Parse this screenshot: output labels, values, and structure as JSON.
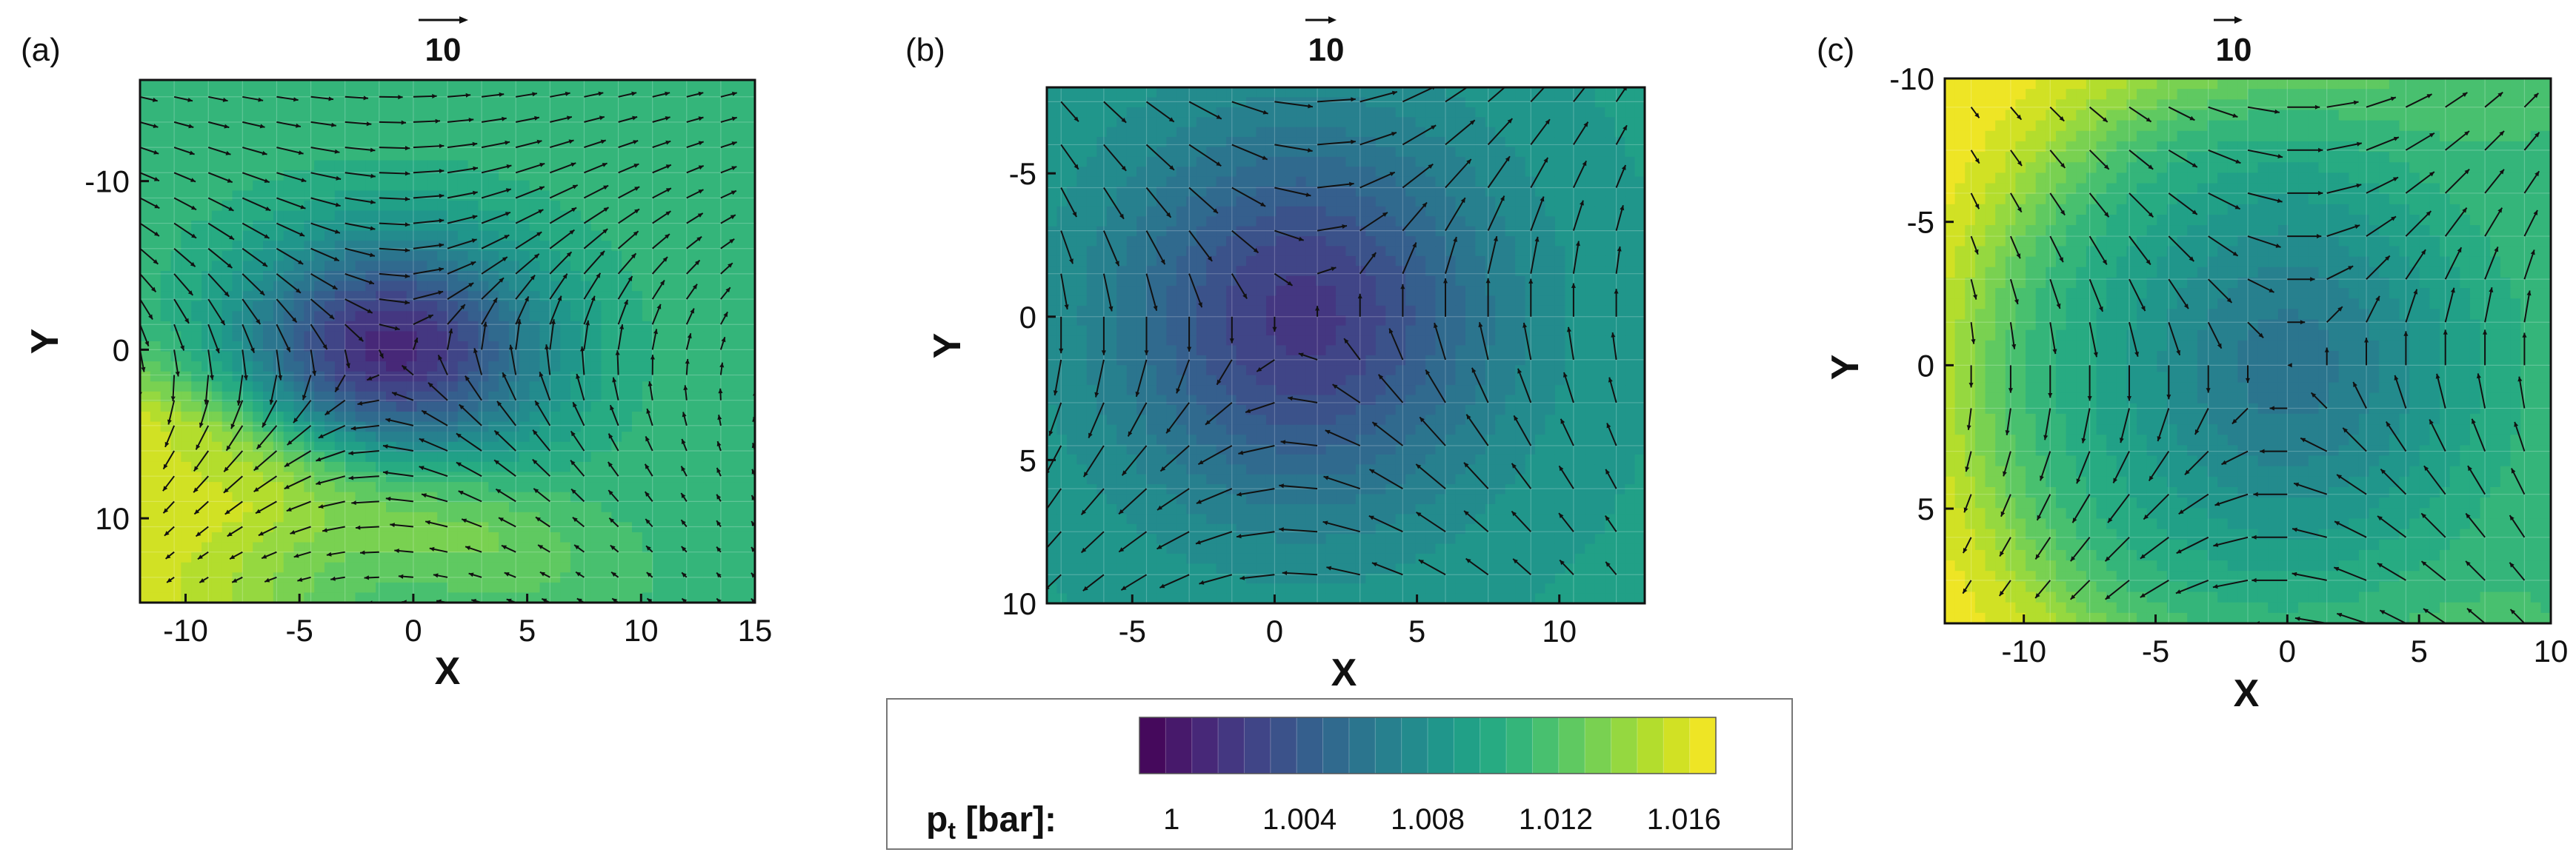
{
  "figure": {
    "colorbar": {
      "label_main": "p",
      "label_sub": "t",
      "label_rest": " [bar]:",
      "tick_labels": [
        "1",
        "1.004",
        "1.008",
        "1.012",
        "1.016"
      ],
      "tick_values": [
        1.0,
        1.004,
        1.008,
        1.012,
        1.016
      ],
      "range": [
        0.999,
        1.017
      ],
      "levels": 22,
      "colors": [
        "#440154",
        "#482173",
        "#433e85",
        "#38598c",
        "#2d708e",
        "#25858e",
        "#1e9b8a",
        "#2ab07f",
        "#52c569",
        "#86d549",
        "#c2df23",
        "#fde725"
      ]
    }
  },
  "chart_data": [
    {
      "panel_label": "(a)",
      "type": "heatmap",
      "xlabel": "X",
      "ylabel": "Y",
      "xlim": [
        -12,
        15
      ],
      "ylim": [
        15,
        -16
      ],
      "y_inverted": true,
      "x_ticks": [
        -10,
        -5,
        0,
        5,
        10,
        15
      ],
      "x_tick_labels": [
        "-10",
        "-5",
        "0",
        "5",
        "10",
        "15"
      ],
      "y_ticks": [
        -10,
        0,
        10
      ],
      "y_tick_labels": [
        "-10",
        "0",
        "10"
      ],
      "reference_vector_label": "10",
      "vortex_center": [
        -1,
        0
      ],
      "min_pt": 1.001,
      "background_pt": 1.011,
      "high_pt_region": "lower-left",
      "high_pt": 1.016,
      "rotation": "counter-clockwise"
    },
    {
      "panel_label": "(b)",
      "type": "heatmap",
      "xlabel": "X",
      "ylabel": "Y",
      "xlim": [
        -8,
        13
      ],
      "ylim": [
        10,
        -8
      ],
      "y_inverted": true,
      "x_ticks": [
        -5,
        0,
        5,
        10
      ],
      "x_tick_labels": [
        "-5",
        "0",
        "5",
        "10"
      ],
      "y_ticks": [
        -5,
        0,
        5,
        10
      ],
      "y_tick_labels": [
        "-5",
        "0",
        "5",
        "10"
      ],
      "reference_vector_label": "10",
      "vortex_center": [
        1,
        0
      ],
      "min_pt": 1.002,
      "background_pt": 1.009,
      "high_pt_region": "none",
      "high_pt": 1.011,
      "rotation": "counter-clockwise"
    },
    {
      "panel_label": "(c)",
      "type": "heatmap",
      "xlabel": "X",
      "ylabel": "Y",
      "xlim": [
        -13,
        10
      ],
      "ylim": [
        9,
        -10
      ],
      "y_inverted": true,
      "x_ticks": [
        -10,
        -5,
        0,
        5,
        10
      ],
      "x_tick_labels": [
        "-10",
        "-5",
        "0",
        "5",
        "10"
      ],
      "y_ticks": [
        -10,
        -5,
        0,
        5
      ],
      "y_tick_labels": [
        "-10",
        "-5",
        "0",
        "5"
      ],
      "reference_vector_label": "10",
      "vortex_center": [
        0,
        0
      ],
      "min_pt": 1.006,
      "background_pt": 1.011,
      "high_pt_region": "left",
      "high_pt": 1.017,
      "rotation": "counter-clockwise"
    }
  ]
}
